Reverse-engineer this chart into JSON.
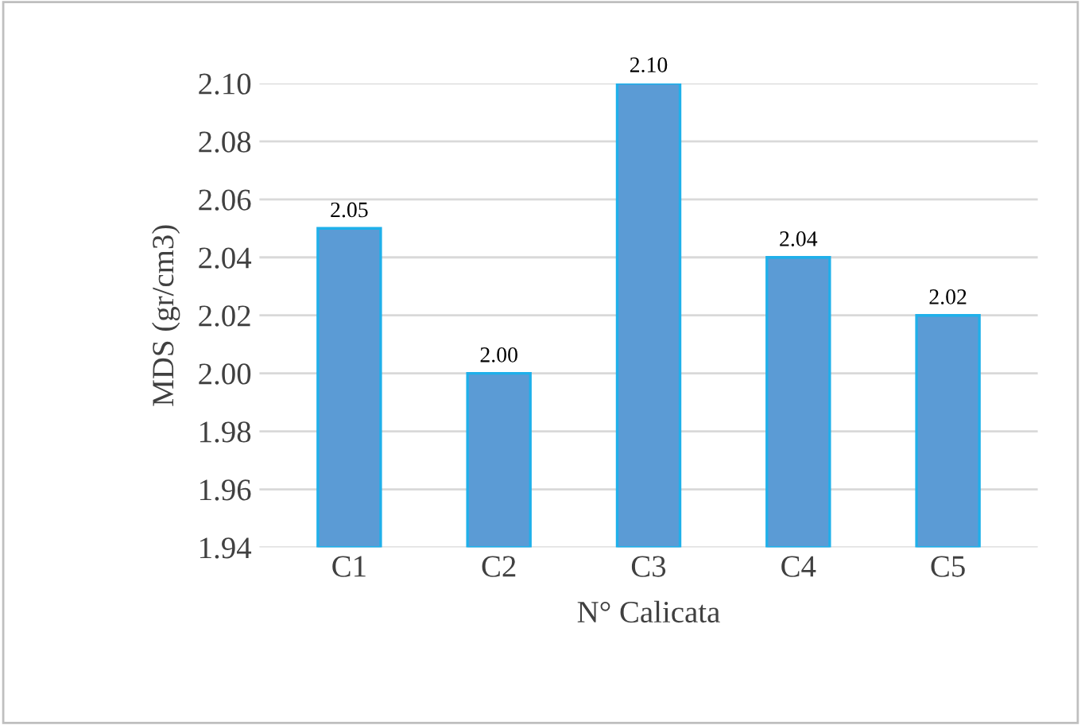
{
  "chart_data": {
    "type": "bar",
    "xlabel": "N° Calicata",
    "ylabel": "MDS (gr/cm3)",
    "categories": [
      "C1",
      "C2",
      "C3",
      "C4",
      "C5"
    ],
    "values": [
      2.05,
      2.0,
      2.1,
      2.04,
      2.02
    ],
    "value_labels": [
      "2.05",
      "2.00",
      "2.10",
      "2.04",
      "2.02"
    ],
    "color": "#5b9bd5",
    "ylim": [
      1.94,
      2.1
    ],
    "yticks": [
      1.94,
      1.96,
      1.98,
      {
        "value": 2.0,
        "label": "2.00"
      },
      2.02,
      2.04,
      2.06,
      2.08,
      {
        "value": 2.1,
        "label": "2.10"
      }
    ],
    "grid": "y",
    "legend": false
  }
}
